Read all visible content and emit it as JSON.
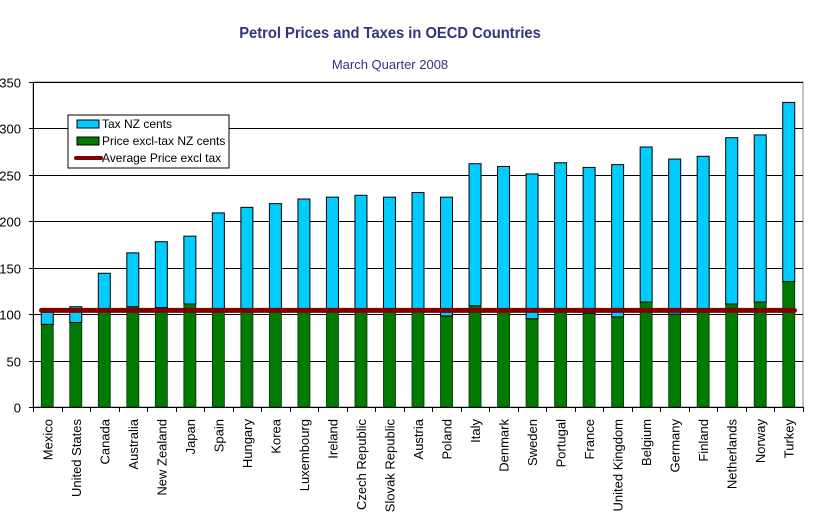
{
  "chart_data": {
    "type": "bar",
    "stacked": true,
    "title": "Petrol Prices and Taxes in OECD Countries",
    "subtitle": "March Quarter 2008",
    "xlabel": "",
    "ylabel": "",
    "ylim": [
      0,
      350
    ],
    "yticks": [
      0,
      50,
      100,
      150,
      200,
      250,
      300,
      350
    ],
    "grid": true,
    "legend_position": "top-left",
    "categories": [
      "Mexico",
      "United States",
      "Canada",
      "Australia",
      "New Zealand",
      "Japan",
      "Spain",
      "Hungary",
      "Korea",
      "Luxembourg",
      "Ireland",
      "Czech Republic",
      "Slovak Republic",
      "Austria",
      "Poland",
      "Italy",
      "Denmark",
      "Sweden",
      "Portugal",
      "France",
      "United Kingdom",
      "Belgium",
      "Germany",
      "Finland",
      "Netherlands",
      "Norway",
      "Turkey"
    ],
    "highlighted_category": "New Zealand",
    "series": [
      {
        "name": "Price excl-tax NZ cents",
        "color": "#007A00",
        "kind": "bar",
        "values": [
          89,
          91,
          105,
          108,
          107,
          111,
          106,
          106,
          106,
          106,
          106,
          106,
          106,
          106,
          98,
          109,
          105,
          95,
          106,
          101,
          97,
          113,
          100,
          104,
          111,
          113,
          135
        ]
      },
      {
        "name": "Tax NZ cents",
        "color": "#00CCFF",
        "kind": "bar",
        "values": [
          13,
          17,
          39,
          58,
          71,
          73,
          103,
          109,
          113,
          118,
          120,
          122,
          120,
          125,
          128,
          153,
          154,
          156,
          157,
          157,
          164,
          167,
          167,
          166,
          179,
          180,
          193
        ]
      },
      {
        "name": "Average Price excl tax",
        "color": "#800000",
        "kind": "line",
        "value": 104
      }
    ],
    "legend": [
      "Tax NZ cents",
      "Price excl-tax NZ cents",
      "Average Price excl tax"
    ]
  },
  "colors": {
    "title": "#333383",
    "highlight_label": "#3333CC",
    "tax": "#00CCFF",
    "price": "#007A00",
    "average": "#800000"
  }
}
